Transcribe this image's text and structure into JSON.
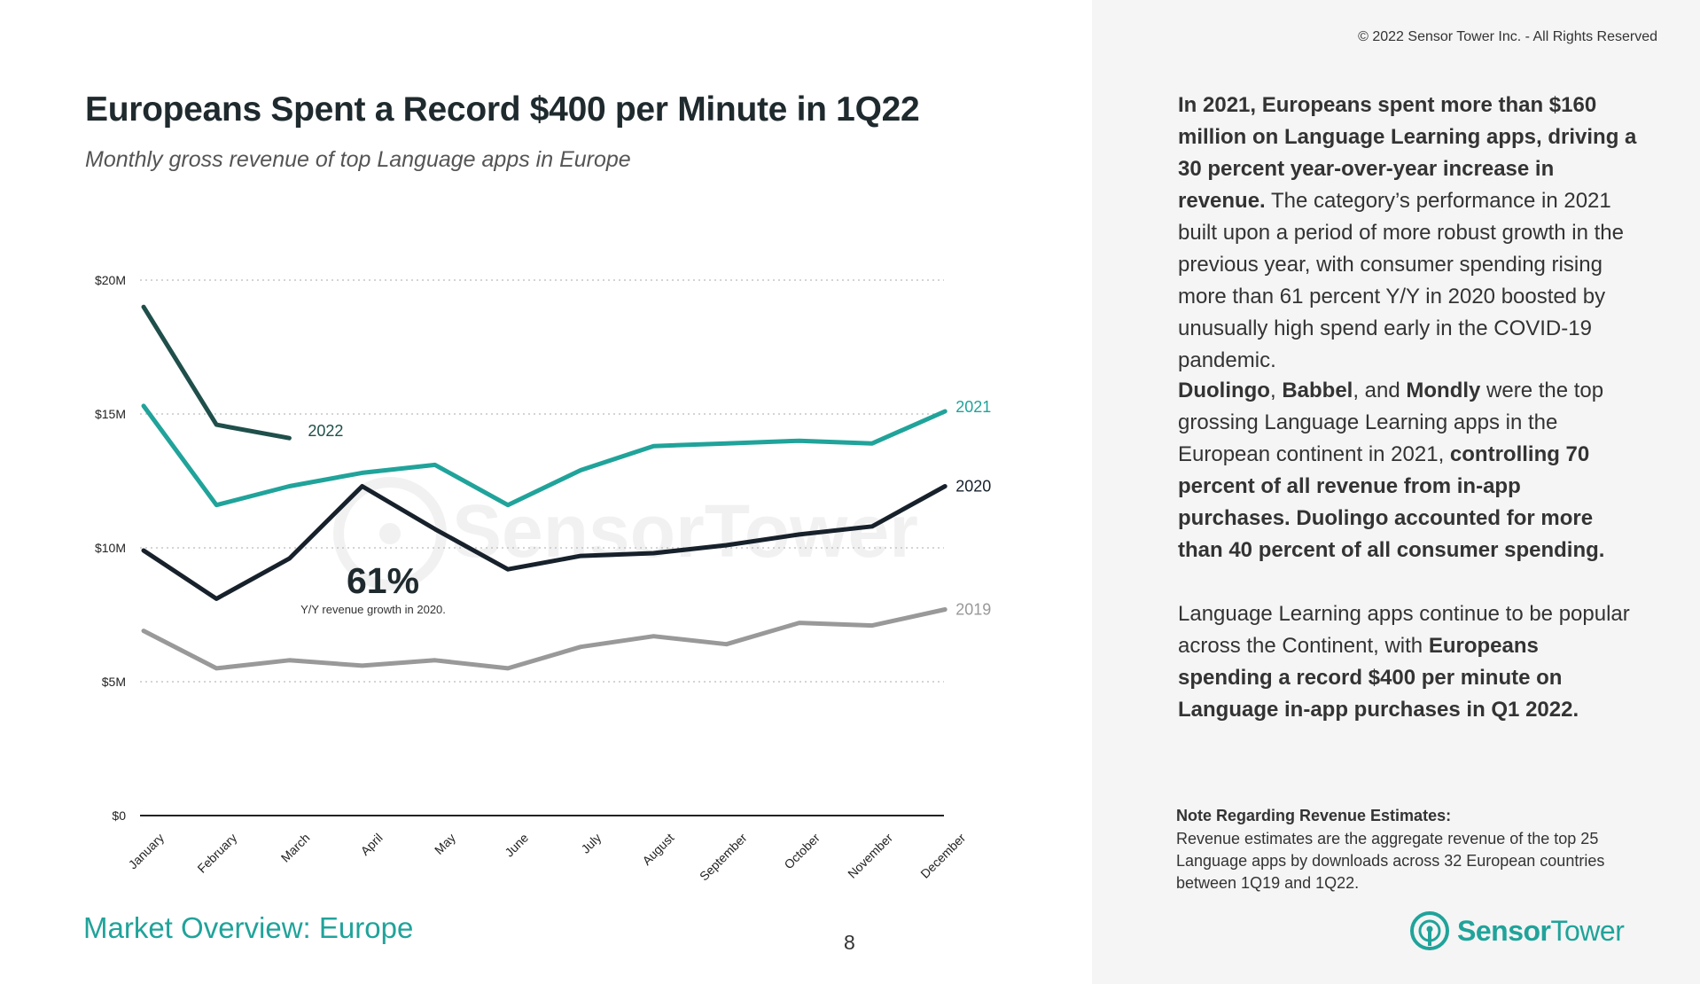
{
  "copyright": "© 2022 Sensor Tower Inc. - All Rights Reserved",
  "title": "Europeans Spent a Record $400 per Minute in 1Q22",
  "subtitle": "Monthly gross revenue of top Language apps in Europe",
  "footer_title": "Market Overview: Europe",
  "page_number": "8",
  "watermark_text": "SensorTower",
  "callout": {
    "value": "61%",
    "caption": "Y/Y revenue growth in 2020."
  },
  "paragraphs": {
    "p1": {
      "bold": "In 2021, Europeans spent more than $160 million on Language Learning apps, driving a 30 percent year-over-year increase in revenue.",
      "rest": " The category’s performance in 2021 built upon a period of more robust growth in the previous year, with consumer spending rising more than 61 percent Y/Y in 2020 boosted by unusually high spend early in the COVID-19 pandemic."
    },
    "p2": {
      "b1": "Duolingo",
      "t1": ", ",
      "b2": "Babbel",
      "t2": ", and ",
      "b3": "Mondly",
      "t3": " were the top grossing Language Learning apps in the European continent in 2021, ",
      "b4": "controlling 70 percent of all revenue from in-app purchases. Duolingo accounted for more than 40 percent of all consumer spending."
    },
    "p3": {
      "t1": "Language Learning apps continue to be popular across the Continent, with ",
      "b1": "Europeans spending a record $400 per minute on Language in-app purchases in Q1 2022."
    }
  },
  "note": {
    "heading": "Note Regarding Revenue Estimates:",
    "body": "Revenue estimates are the aggregate revenue of the top 25 Language apps by downloads across 32 European countries between 1Q19 and 1Q22."
  },
  "logo": {
    "bold": "Sensor",
    "light": "Tower",
    "icon": "sensor-tower-logo-icon"
  },
  "colors": {
    "accent": "#20a39a",
    "s2022": "#1f4f4a",
    "s2021": "#20a39a",
    "s2020": "#17212b",
    "s2019": "#999999",
    "grid": "#bbbbbb"
  },
  "chart_data": {
    "type": "line",
    "title": "Europeans Spent a Record $400 per Minute in 1Q22",
    "subtitle": "Monthly gross revenue of top Language apps in Europe",
    "xlabel": "",
    "ylabel": "",
    "categories": [
      "January",
      "February",
      "March",
      "April",
      "May",
      "June",
      "July",
      "August",
      "September",
      "October",
      "November",
      "December"
    ],
    "ylim": [
      0,
      20
    ],
    "yticks": [
      0,
      5,
      10,
      15,
      20
    ],
    "ytick_labels": [
      "$0",
      "$5M",
      "$10M",
      "$15M",
      "$20M"
    ],
    "grid": "dotted horizontal",
    "series": [
      {
        "name": "2022",
        "values": [
          19.0,
          14.6,
          14.1,
          null,
          null,
          null,
          null,
          null,
          null,
          null,
          null,
          null
        ]
      },
      {
        "name": "2021",
        "values": [
          15.3,
          11.6,
          12.3,
          12.8,
          13.1,
          11.6,
          12.9,
          13.8,
          13.9,
          14.0,
          13.9,
          15.1
        ]
      },
      {
        "name": "2020",
        "values": [
          9.9,
          8.1,
          9.6,
          12.3,
          10.7,
          9.2,
          9.7,
          9.8,
          10.1,
          10.5,
          10.8,
          12.3
        ]
      },
      {
        "name": "2019",
        "values": [
          6.9,
          5.5,
          5.8,
          5.6,
          5.8,
          5.5,
          6.3,
          6.7,
          6.4,
          7.2,
          7.1,
          7.7
        ]
      }
    ]
  }
}
